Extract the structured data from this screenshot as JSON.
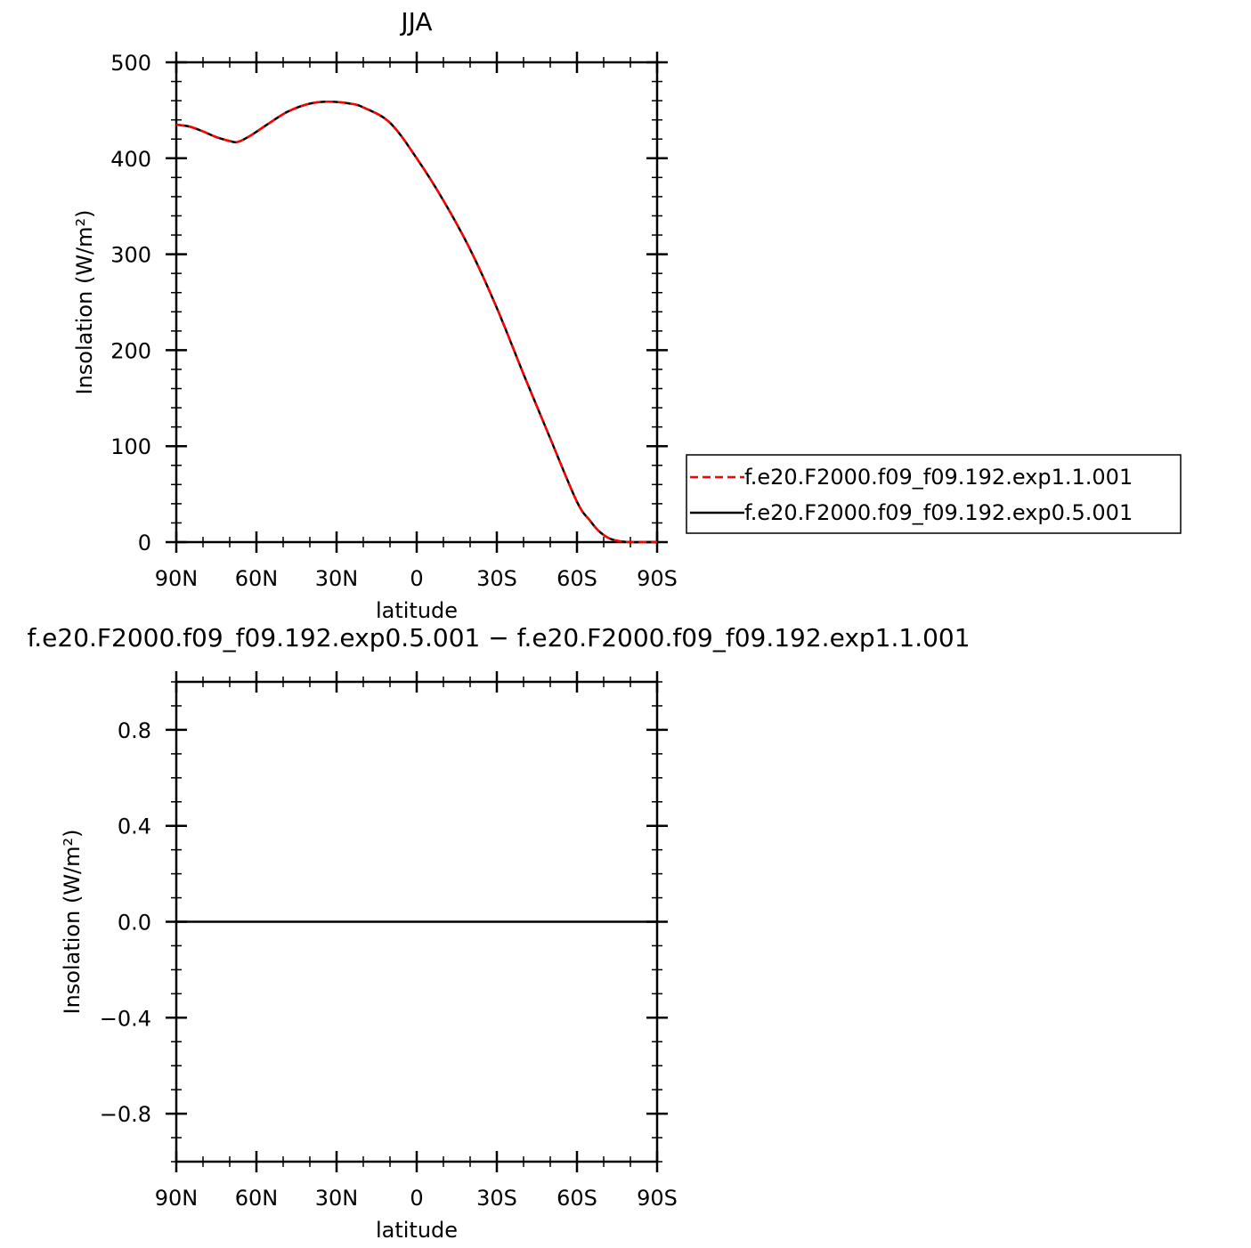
{
  "chart_data": [
    {
      "type": "line",
      "title": "JJA",
      "xlabel": "latitude",
      "ylabel": "Insolation  (W/m²)",
      "xlim": [
        -90,
        90
      ],
      "ylim": [
        0,
        500
      ],
      "x_ticks": [
        -90,
        -60,
        -30,
        0,
        30,
        60,
        90
      ],
      "x_tick_labels": [
        "90N",
        "60N",
        "30N",
        "0",
        "30S",
        "60S",
        "90S"
      ],
      "y_ticks": [
        0,
        100,
        200,
        300,
        400,
        500
      ],
      "y_tick_labels": [
        "0",
        "100",
        "200",
        "300",
        "400",
        "500"
      ],
      "grid": false,
      "legend_position": "right",
      "x": [
        -90,
        -85,
        -80,
        -75,
        -70,
        -67,
        -62,
        -55,
        -48,
        -40,
        -33,
        -25,
        -20,
        -10,
        0,
        10,
        20,
        30,
        40,
        50,
        60,
        65,
        68,
        72,
        76,
        80,
        85,
        90
      ],
      "series": [
        {
          "name": "f.e20.F2000.f09_f09.192.exp1.1.001",
          "color": "#ff0000",
          "dash": "dashed",
          "values": [
            435,
            433,
            428,
            422,
            418,
            417,
            424,
            437,
            449,
            457,
            459,
            457,
            453,
            437,
            400,
            356,
            305,
            244,
            175,
            108,
            42,
            22,
            12,
            4,
            1,
            0,
            0,
            0
          ]
        },
        {
          "name": "f.e20.F2000.f09_f09.192.exp0.5.001",
          "color": "#000000",
          "dash": "solid",
          "values": [
            435,
            433,
            428,
            422,
            418,
            417,
            424,
            437,
            449,
            457,
            459,
            457,
            453,
            437,
            400,
            356,
            305,
            244,
            175,
            108,
            42,
            22,
            12,
            4,
            1,
            0,
            0,
            0
          ]
        }
      ]
    },
    {
      "type": "line",
      "title": "f.e20.F2000.f09_f09.192.exp0.5.001  −  f.e20.F2000.f09_f09.192.exp1.1.001",
      "xlabel": "latitude",
      "ylabel": "Insolation  (W/m²)",
      "xlim": [
        -90,
        90
      ],
      "ylim": [
        -1,
        1
      ],
      "x_ticks": [
        -90,
        -60,
        -30,
        0,
        30,
        60,
        90
      ],
      "x_tick_labels": [
        "90N",
        "60N",
        "30N",
        "0",
        "30S",
        "60S",
        "90S"
      ],
      "y_ticks": [
        -0.8,
        -0.4,
        0.0,
        0.4,
        0.8
      ],
      "y_tick_labels": [
        "−0.8",
        "−0.4",
        "0.0",
        "0.4",
        "0.8"
      ],
      "grid": false,
      "x": [
        -90,
        90
      ],
      "series": [
        {
          "color": "#000000",
          "dash": "solid",
          "values": [
            0,
            0
          ]
        }
      ]
    }
  ]
}
